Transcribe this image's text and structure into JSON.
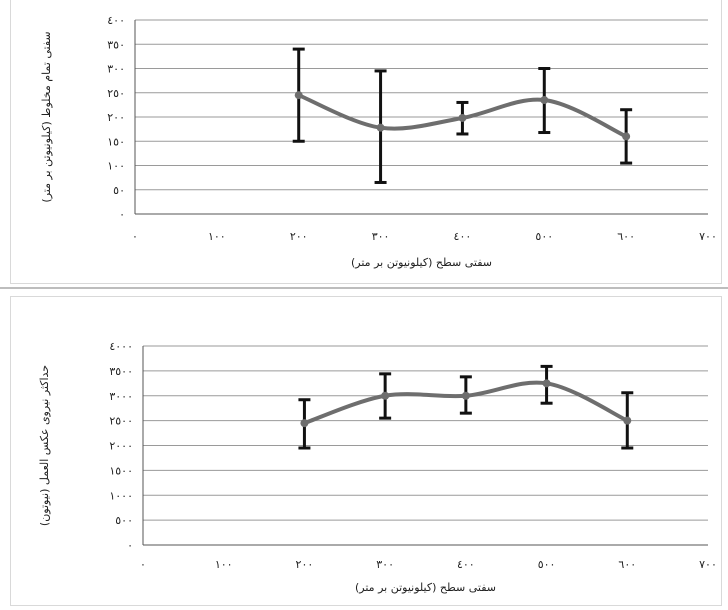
{
  "chart_data": [
    {
      "type": "line",
      "title": "",
      "xlabel": "سفتی سطح (کیلونیوتن بر متر)",
      "ylabel": "سفتی تمام مخلوط (کیلونیوتن بر متر)",
      "x_ticks": [
        "٠",
        "١٠٠",
        "٢٠٠",
        "٣٠٠",
        "٤٠٠",
        "٥٠٠",
        "٦٠٠",
        "٧٠٠"
      ],
      "y_ticks": [
        "٠",
        "٥٠",
        "١٠٠",
        "١٥٠",
        "٢٠٠",
        "٢٥٠",
        "٣٠٠",
        "٣٥٠",
        "٤٠٠"
      ],
      "xlim": [
        0,
        700
      ],
      "ylim": [
        0,
        400
      ],
      "grid": true,
      "smooth": true,
      "series": [
        {
          "x": [
            200,
            300,
            400,
            500,
            600
          ],
          "y": [
            245,
            178,
            198,
            235,
            160
          ],
          "err_low": [
            150,
            65,
            165,
            168,
            105
          ],
          "err_high": [
            340,
            295,
            230,
            300,
            215
          ]
        }
      ],
      "colors": {
        "line": "#6e6e6e",
        "error_bar": "#111111",
        "grid": "#9a9a9a"
      }
    },
    {
      "type": "line",
      "title": "",
      "xlabel": "سفتی سطح (کیلونیوتن بر متر)",
      "ylabel": "حداکثر نیروی عکس العمل (نیوتون)",
      "x_ticks": [
        "٠",
        "١٠٠",
        "٢٠٠",
        "٣٠٠",
        "٤٠٠",
        "٥٠٠",
        "٦٠٠",
        "٧٠٠"
      ],
      "y_ticks": [
        "٠",
        "٥٠٠",
        "١٠٠٠",
        "١٥٠٠",
        "٢٠٠٠",
        "٢٥٠٠",
        "٣٠٠٠",
        "٣٥٠٠",
        "٤٠٠٠"
      ],
      "xlim": [
        0,
        700
      ],
      "ylim": [
        0,
        4000
      ],
      "grid": true,
      "smooth": true,
      "series": [
        {
          "x": [
            200,
            300,
            400,
            500,
            600
          ],
          "y": [
            2450,
            3000,
            3000,
            3250,
            2500
          ],
          "err_low": [
            1950,
            2550,
            2650,
            2850,
            1950
          ],
          "err_high": [
            2920,
            3440,
            3380,
            3590,
            3060
          ]
        }
      ],
      "colors": {
        "line": "#6e6e6e",
        "error_bar": "#111111",
        "grid": "#9a9a9a"
      }
    }
  ]
}
